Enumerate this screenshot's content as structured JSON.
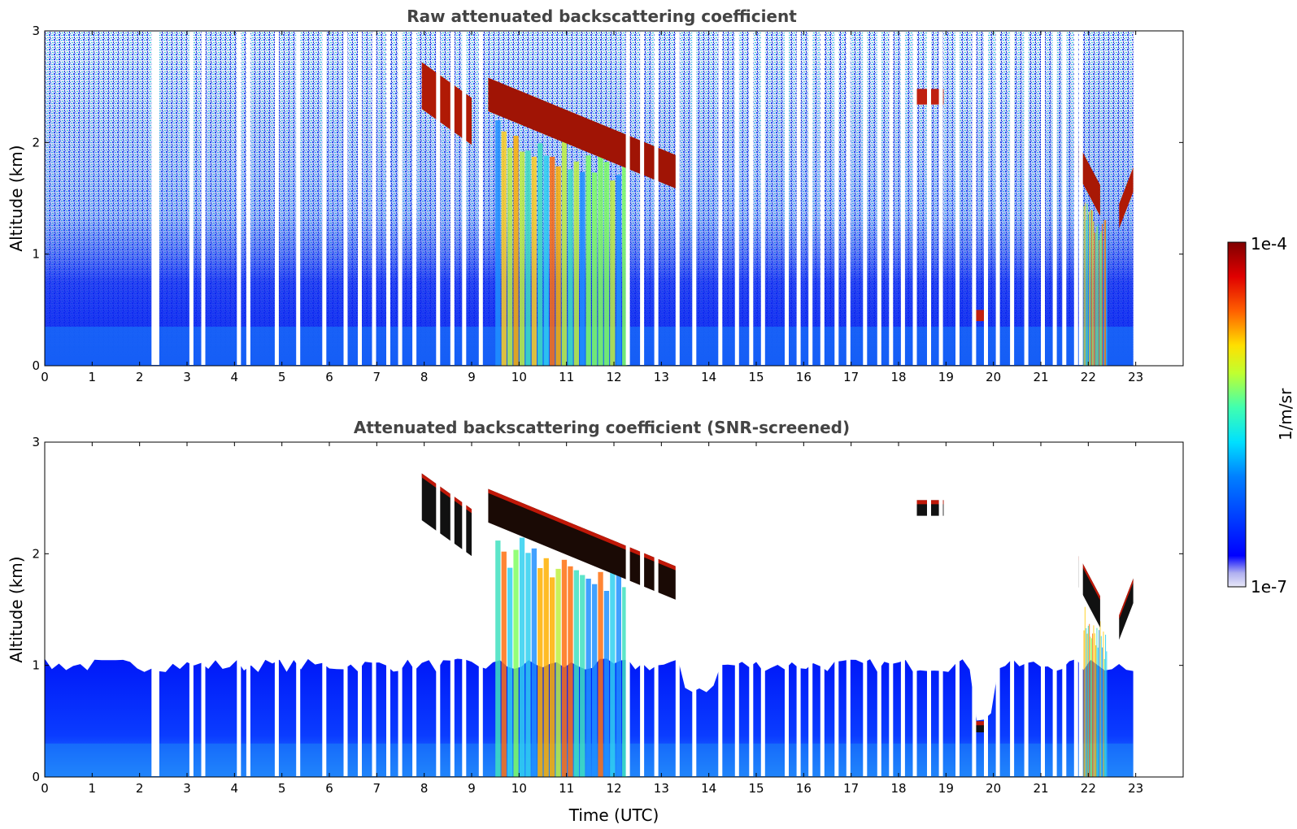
{
  "chart_data": [
    {
      "type": "heatmap",
      "title": "Raw attenuated backscattering coefficient",
      "xlabel": "",
      "ylabel": "Altitude (km)",
      "xlim": [
        0,
        24
      ],
      "ylim": [
        0,
        3
      ],
      "xticks": [
        "0",
        "1",
        "2",
        "3",
        "4",
        "5",
        "6",
        "7",
        "8",
        "9",
        "10",
        "11",
        "12",
        "13",
        "14",
        "15",
        "16",
        "17",
        "18",
        "19",
        "20",
        "21",
        "22",
        "23"
      ],
      "yticks": [
        "0",
        "1",
        "2",
        "3"
      ],
      "screened": false,
      "data_end_hour": 22.95,
      "cloud_layers": [
        {
          "start": 7.95,
          "end": 9.0,
          "top_start": 2.72,
          "top_end": 2.4,
          "thickness": 0.42,
          "color": "#b01a05"
        },
        {
          "start": 9.35,
          "end": 13.35,
          "top_start": 2.58,
          "top_end": 1.88,
          "thickness": 0.3,
          "color": "#a01405"
        },
        {
          "start": 18.35,
          "end": 18.95,
          "top_start": 2.48,
          "top_end": 2.48,
          "thickness": 0.14,
          "color": "#c02010"
        },
        {
          "start": 21.8,
          "end": 22.25,
          "top_start": 1.98,
          "top_end": 1.62,
          "thickness": 0.28,
          "color": "#a81805"
        },
        {
          "start": 22.65,
          "end": 22.95,
          "top_start": 1.45,
          "top_end": 1.78,
          "thickness": 0.22,
          "color": "#b01a05"
        },
        {
          "start": 19.6,
          "end": 19.8,
          "top_start": 0.5,
          "top_end": 0.5,
          "thickness": 0.1,
          "color": "#c02010"
        }
      ],
      "precip_shafts": [
        {
          "start": 9.5,
          "end": 12.3,
          "top": 2.2
        },
        {
          "start": 21.9,
          "end": 22.4,
          "top": 1.6
        }
      ],
      "gap_hours": [
        2.25,
        2.33,
        3.05,
        3.3,
        4.05,
        4.25,
        4.85,
        5.3,
        5.85,
        6.3,
        6.6,
        6.9,
        7.2,
        7.45,
        7.75,
        8.25,
        8.55,
        8.8,
        9.15,
        12.25,
        12.55,
        12.85,
        13.3,
        13.65,
        14.2,
        14.55,
        14.85,
        15.1,
        15.6,
        15.85,
        16.1,
        16.35,
        16.65,
        16.9,
        17.25,
        17.55,
        17.8,
        18.05,
        18.3,
        18.6,
        18.85,
        19.2,
        19.55,
        19.8,
        20.05,
        20.35,
        20.65,
        21.0,
        21.25,
        21.45,
        21.7,
        21.8
      ]
    },
    {
      "type": "heatmap",
      "title": "Attenuated backscattering coefficient (SNR-screened)",
      "xlabel": "Time (UTC)",
      "ylabel": "Altitude (km)",
      "xlim": [
        0,
        24
      ],
      "ylim": [
        0,
        3
      ],
      "xticks": [
        "0",
        "1",
        "2",
        "3",
        "4",
        "5",
        "6",
        "7",
        "8",
        "9",
        "10",
        "11",
        "12",
        "13",
        "14",
        "15",
        "16",
        "17",
        "18",
        "19",
        "20",
        "21",
        "22",
        "23"
      ],
      "yticks": [
        "0",
        "1",
        "2",
        "3"
      ],
      "screened": true,
      "data_end_hour": 22.95,
      "boundary_layer_top_km": 1.0,
      "cloud_layers": [
        {
          "start": 7.95,
          "end": 9.0,
          "top_start": 2.72,
          "top_end": 2.4,
          "thickness": 0.42,
          "color": "#111111"
        },
        {
          "start": 9.35,
          "end": 13.35,
          "top_start": 2.58,
          "top_end": 1.88,
          "thickness": 0.3,
          "color": "#1a0a05"
        },
        {
          "start": 18.35,
          "end": 18.95,
          "top_start": 2.48,
          "top_end": 2.48,
          "thickness": 0.14,
          "color": "#111111"
        },
        {
          "start": 21.8,
          "end": 22.25,
          "top_start": 1.98,
          "top_end": 1.62,
          "thickness": 0.28,
          "color": "#111111"
        },
        {
          "start": 22.65,
          "end": 22.95,
          "top_start": 1.45,
          "top_end": 1.78,
          "thickness": 0.22,
          "color": "#111111"
        },
        {
          "start": 19.6,
          "end": 19.8,
          "top_start": 0.5,
          "top_end": 0.5,
          "thickness": 0.1,
          "color": "#111111"
        }
      ],
      "precip_shafts": [
        {
          "start": 9.5,
          "end": 12.3,
          "top": 2.2
        },
        {
          "start": 21.9,
          "end": 22.4,
          "top": 1.6
        }
      ],
      "gap_hours": [
        2.25,
        2.33,
        3.05,
        3.3,
        4.05,
        4.25,
        4.85,
        5.3,
        5.85,
        6.3,
        6.6,
        6.9,
        7.2,
        7.45,
        7.75,
        8.25,
        8.55,
        8.8,
        9.15,
        12.25,
        12.55,
        12.85,
        13.3,
        13.65,
        14.2,
        14.55,
        14.85,
        15.1,
        15.6,
        15.85,
        16.1,
        16.35,
        16.65,
        16.9,
        17.25,
        17.55,
        17.8,
        18.05,
        18.3,
        18.6,
        18.85,
        19.2,
        19.55,
        19.8,
        20.05,
        20.35,
        20.65,
        21.0,
        21.25,
        21.45,
        21.7,
        21.8
      ]
    }
  ],
  "colorbar": {
    "label": "1/m/sr",
    "max_label": "1e-4",
    "min_label": "1e-7",
    "colormap": "jet",
    "scale": "log",
    "range": [
      1e-07,
      0.0001
    ]
  }
}
